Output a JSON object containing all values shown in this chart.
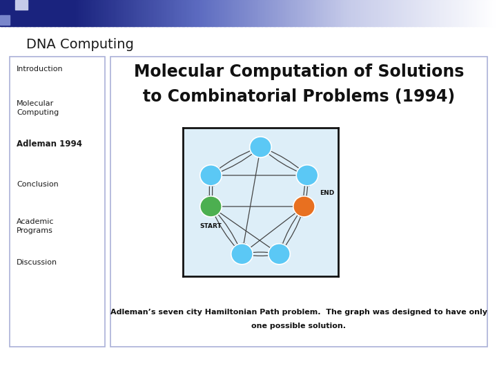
{
  "slide_title": "DNA Computing",
  "slide_bg": "#ffffff",
  "left_panel_items": [
    "Introduction",
    "Molecular\nComputing",
    "Adleman 1994",
    "Conclusion",
    "Academic\nPrograms",
    "Discussion"
  ],
  "left_panel_bold": [
    false,
    false,
    true,
    false,
    false,
    false
  ],
  "left_panel_bg": "#ffffff",
  "left_panel_border": "#aab0d8",
  "main_panel_bg": "#ffffff",
  "main_panel_border": "#aab0d8",
  "main_title_line1": "Molecular Computation of Solutions",
  "main_title_line2": "to Combinatorial Problems (1994)",
  "main_title_fontsize": 17,
  "caption_line1": "Adleman’s seven city Hamiltonian Path problem.  The graph was designed to have only",
  "caption_line2": "one possible solution.",
  "caption_fontsize": 8,
  "node_color_default": "#5bc8f5",
  "node_color_start": "#4caf50",
  "node_color_end": "#e87020",
  "graph_bg": "#ddeef8",
  "graph_border": "#111111",
  "header_square1_color": "#1a237e",
  "header_square2_color": "#7986cb",
  "header_square3_color": "#c5cae9"
}
